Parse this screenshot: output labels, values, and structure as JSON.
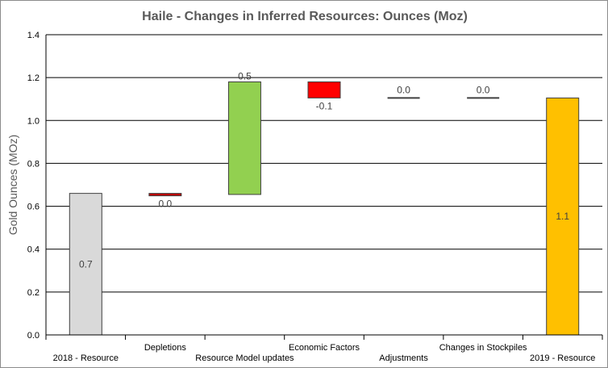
{
  "chart_data": {
    "type": "bar",
    "subtype": "waterfall",
    "title": "Haile - Changes in Inferred Resources: Ounces (Moz)",
    "xlabel": "",
    "ylabel": "Gold Ounces (MOz)",
    "ylim": [
      0,
      1.4
    ],
    "yticks": [
      "0.0",
      "0.2",
      "0.4",
      "0.6",
      "0.8",
      "1.0",
      "1.2",
      "1.4"
    ],
    "grid": true,
    "legend": "none",
    "categories": [
      "2018 - Resource",
      "Depletions",
      "Resource Model updates",
      "Economic Factors",
      "Adjustments",
      "Changes in Stockpiles",
      "2019 - Resource"
    ],
    "bars": [
      {
        "start": 0.0,
        "end": 0.66,
        "label": "0.7",
        "color": "#d9d9d9",
        "kind": "total"
      },
      {
        "start": 0.66,
        "end": 0.655,
        "label": "0.0",
        "color": "#c00000",
        "kind": "decrease"
      },
      {
        "start": 0.655,
        "end": 1.18,
        "label": "0.5",
        "color": "#92d050",
        "kind": "increase"
      },
      {
        "start": 1.18,
        "end": 1.105,
        "label": "-0.1",
        "color": "#ff0000",
        "kind": "decrease"
      },
      {
        "start": 1.105,
        "end": 1.105,
        "label": "0.0",
        "color": "#404040",
        "kind": "zero"
      },
      {
        "start": 1.105,
        "end": 1.105,
        "label": "0.0",
        "color": "#404040",
        "kind": "zero"
      },
      {
        "start": 0.0,
        "end": 1.105,
        "label": "1.1",
        "color": "#ffc000",
        "kind": "total"
      }
    ]
  }
}
